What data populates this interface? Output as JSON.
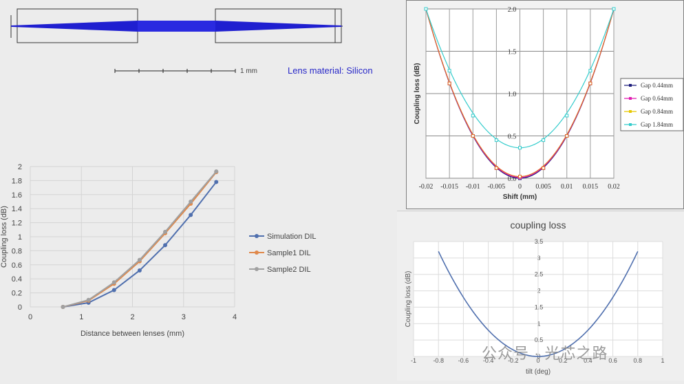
{
  "lens_diagram": {
    "scale_label": "1 mm",
    "material_label": "Lens material: Silicon",
    "beam_color": "#1f1fd0"
  },
  "watermark": "公众号 · 光芯之路",
  "chart_data": [
    {
      "type": "line",
      "id": "dil",
      "title": "",
      "xlabel": "Distance between lenses (mm)",
      "ylabel": "Coupling loss (dB)",
      "xlim": [
        0,
        4
      ],
      "ylim": [
        0,
        2
      ],
      "xticks": [
        "0",
        "1",
        "2",
        "3",
        "4"
      ],
      "yticks": [
        "0",
        "0.2",
        "0.4",
        "0.6",
        "0.8",
        "1",
        "1.2",
        "1.4",
        "1.6",
        "1.8",
        "2"
      ],
      "grid": true,
      "legend_position": "right",
      "series": [
        {
          "name": "Simulation DIL",
          "color": "#4f6fae",
          "x": [
            0.64,
            1.14,
            1.64,
            2.14,
            2.64,
            3.14,
            3.64
          ],
          "y": [
            0.0,
            0.06,
            0.24,
            0.52,
            0.88,
            1.31,
            1.78
          ]
        },
        {
          "name": "Sample1 DIL",
          "color": "#e0884a",
          "x": [
            0.64,
            1.14,
            1.64,
            2.14,
            2.64,
            3.14,
            3.64
          ],
          "y": [
            0.0,
            0.09,
            0.33,
            0.65,
            1.05,
            1.47,
            1.92
          ]
        },
        {
          "name": "Sample2 DIL",
          "color": "#a0a0a0",
          "x": [
            0.64,
            1.14,
            1.64,
            2.14,
            2.64,
            3.14,
            3.64
          ],
          "y": [
            0.0,
            0.1,
            0.35,
            0.67,
            1.07,
            1.5,
            1.93
          ]
        }
      ]
    },
    {
      "type": "line",
      "id": "shift",
      "title": "",
      "xlabel": "Shift (mm)",
      "ylabel": "Coupling loss (dB)",
      "xlim": [
        -0.02,
        0.02
      ],
      "ylim": [
        0,
        2
      ],
      "xticks": [
        "-0.02",
        "-0.015",
        "-0.01",
        "-0.005",
        "0",
        "0.005",
        "0.01",
        "0.015",
        "0.02"
      ],
      "yticks": [
        "0.0",
        "0.5",
        "1.0",
        "1.5",
        "2.0"
      ],
      "grid": true,
      "legend_position": "right",
      "series": [
        {
          "name": "Gap 0.44mm",
          "color": "#1a1a7a",
          "x": [
            -0.02,
            -0.015,
            -0.01,
            -0.005,
            0,
            0.005,
            0.01,
            0.015,
            0.02
          ],
          "y": [
            2.0,
            1.12,
            0.5,
            0.12,
            0.0,
            0.12,
            0.5,
            1.12,
            2.0
          ]
        },
        {
          "name": "Gap 0.64mm",
          "color": "#e01ab0",
          "x": [
            -0.02,
            -0.015,
            -0.01,
            -0.005,
            0,
            0.005,
            0.01,
            0.015,
            0.02
          ],
          "y": [
            2.0,
            1.12,
            0.5,
            0.12,
            0.01,
            0.12,
            0.5,
            1.12,
            2.0
          ]
        },
        {
          "name": "Gap 0.84mm",
          "color": "#e6c800",
          "x": [
            -0.02,
            -0.015,
            -0.01,
            -0.005,
            0,
            0.005,
            0.01,
            0.015,
            0.02
          ],
          "y": [
            2.0,
            1.12,
            0.5,
            0.12,
            0.02,
            0.12,
            0.5,
            1.12,
            2.0
          ]
        },
        {
          "name": "Gap 1.84mm",
          "color": "#33cccc",
          "x": [
            -0.02,
            -0.015,
            -0.01,
            -0.005,
            0,
            0.005,
            0.01,
            0.015,
            0.02
          ],
          "y": [
            2.0,
            1.27,
            0.74,
            0.45,
            0.36,
            0.45,
            0.74,
            1.27,
            2.0
          ]
        }
      ],
      "overlay_series": {
        "name": "Gap 0.84mm (orange)",
        "color": "#e07020"
      }
    },
    {
      "type": "line",
      "id": "tilt",
      "title": "coupling loss",
      "xlabel": "tilt (deg)",
      "ylabel": "Coupling loss (dB)",
      "xlim": [
        -1,
        1
      ],
      "ylim": [
        0,
        3.5
      ],
      "xticks": [
        "-1",
        "-0.8",
        "-0.6",
        "-0.4",
        "-0.2",
        "0",
        "0.2",
        "0.4",
        "0.6",
        "0.8",
        "1"
      ],
      "yticks": [
        "0",
        "0.5",
        "1",
        "1.5",
        "2",
        "2.5",
        "3",
        "3.5"
      ],
      "grid": true,
      "series": [
        {
          "name": "",
          "color": "#4f6fae",
          "x": [
            -0.8,
            -0.6,
            -0.4,
            -0.2,
            0,
            0.2,
            0.4,
            0.6,
            0.8
          ],
          "y": [
            3.2,
            1.8,
            0.8,
            0.2,
            0.0,
            0.2,
            0.8,
            1.8,
            3.2
          ]
        }
      ]
    }
  ]
}
